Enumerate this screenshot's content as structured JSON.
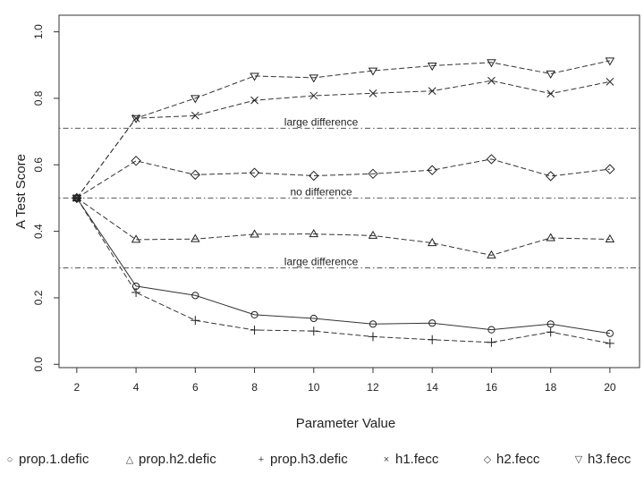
{
  "chart_data": {
    "type": "line",
    "title": "",
    "xlabel": "Parameter Value",
    "ylabel": "A Test Score",
    "x": [
      2,
      4,
      6,
      8,
      10,
      12,
      14,
      16,
      18,
      20
    ],
    "xlim": [
      1.4,
      21
    ],
    "ylim": [
      -0.01,
      1.05
    ],
    "x_ticks": [
      "2",
      "4",
      "6",
      "8",
      "10",
      "12",
      "14",
      "16",
      "18",
      "20"
    ],
    "y_ticks": [
      "0.0",
      "0.2",
      "0.4",
      "0.6",
      "0.8",
      "1.0"
    ],
    "grid": false,
    "reference_lines": [
      {
        "y": 0.71,
        "label": "large difference",
        "label_x": 10.25
      },
      {
        "y": 0.5,
        "label": "no difference",
        "label_x": 10.25
      },
      {
        "y": 0.29,
        "label": "large difference",
        "label_x": 10.25
      }
    ],
    "series": [
      {
        "name": "prop.1.defic",
        "marker": "circle",
        "dash": "solid",
        "values": [
          0.5,
          0.235,
          0.207,
          0.149,
          0.138,
          0.121,
          0.124,
          0.104,
          0.121,
          0.093
        ]
      },
      {
        "name": "prop.h2.defic",
        "marker": "triangle-up",
        "dash": "dashed",
        "values": [
          0.5,
          0.375,
          0.377,
          0.391,
          0.392,
          0.387,
          0.365,
          0.328,
          0.38,
          0.376
        ]
      },
      {
        "name": "prop.h3.defic",
        "marker": "plus",
        "dash": "dashed",
        "values": [
          0.5,
          0.216,
          0.132,
          0.103,
          0.1,
          0.083,
          0.074,
          0.066,
          0.097,
          0.063
        ]
      },
      {
        "name": "h1.fecc",
        "marker": "cross",
        "dash": "dashed",
        "values": [
          0.5,
          0.74,
          0.748,
          0.794,
          0.808,
          0.815,
          0.822,
          0.853,
          0.814,
          0.85
        ]
      },
      {
        "name": "h2.fecc",
        "marker": "diamond",
        "dash": "dashed",
        "values": [
          0.5,
          0.612,
          0.57,
          0.576,
          0.567,
          0.573,
          0.584,
          0.617,
          0.566,
          0.587
        ]
      },
      {
        "name": "h3.fecc",
        "marker": "triangle-down",
        "dash": "dashed",
        "values": [
          0.5,
          0.74,
          0.8,
          0.867,
          0.862,
          0.883,
          0.898,
          0.908,
          0.874,
          0.913
        ]
      }
    ],
    "legend": {
      "position": "bottom",
      "items": [
        {
          "symbol": "○",
          "label": "prop.1.defic"
        },
        {
          "symbol": "△",
          "label": "prop.h2.defic"
        },
        {
          "symbol": "+",
          "label": "prop.h3.defic"
        },
        {
          "symbol": "×",
          "label": "h1.fecc"
        },
        {
          "symbol": "◇",
          "label": "h2.fecc"
        },
        {
          "symbol": "▽",
          "label": "h3.fecc"
        }
      ]
    }
  }
}
